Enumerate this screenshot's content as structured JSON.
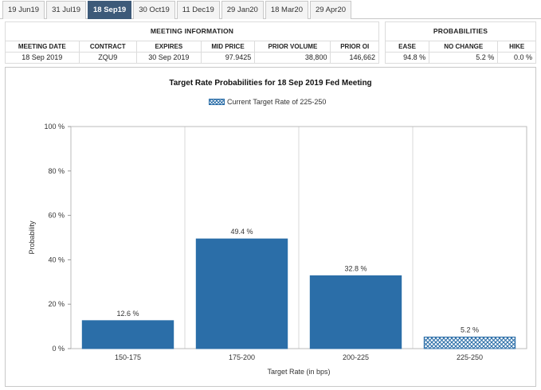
{
  "tabs": [
    {
      "label": "19 Jun19",
      "active": false
    },
    {
      "label": "31 Jul19",
      "active": false
    },
    {
      "label": "18 Sep19",
      "active": true
    },
    {
      "label": "30 Oct19",
      "active": false
    },
    {
      "label": "11 Dec19",
      "active": false
    },
    {
      "label": "29 Jan20",
      "active": false
    },
    {
      "label": "18 Mar20",
      "active": false
    },
    {
      "label": "29 Apr20",
      "active": false
    }
  ],
  "meeting_info": {
    "title": "MEETING INFORMATION",
    "headers": [
      "MEETING DATE",
      "CONTRACT",
      "EXPIRES",
      "MID PRICE",
      "PRIOR VOLUME",
      "PRIOR OI"
    ],
    "values": [
      "18 Sep 2019",
      "ZQU9",
      "30 Sep 2019",
      "97.9425",
      "38,800",
      "146,662"
    ]
  },
  "probabilities": {
    "title": "PROBABILITIES",
    "headers": [
      "EASE",
      "NO CHANGE",
      "HIKE"
    ],
    "values": [
      "94.8 %",
      "5.2 %",
      "0.0 %"
    ]
  },
  "colors": {
    "bar": "#2b6ea8",
    "tab_active": "#3d5a79"
  },
  "chart_data": {
    "type": "bar",
    "title": "Target Rate Probabilities for 18 Sep 2019 Fed Meeting",
    "legend": "Current Target Rate of 225-250",
    "legend_placement": "top-center",
    "xlabel": "Target Rate (in bps)",
    "ylabel": "Probability",
    "categories": [
      "150-175",
      "175-200",
      "200-225",
      "225-250"
    ],
    "values": [
      12.6,
      49.4,
      32.8,
      5.2
    ],
    "value_labels": [
      "12.6 %",
      "49.4 %",
      "32.8 %",
      "5.2 %"
    ],
    "current_category": "225-250",
    "ylim": [
      0,
      100
    ],
    "yticks": [
      "0 %",
      "20 %",
      "40 %",
      "60 %",
      "80 %",
      "100 %"
    ],
    "grid": "vertical"
  }
}
